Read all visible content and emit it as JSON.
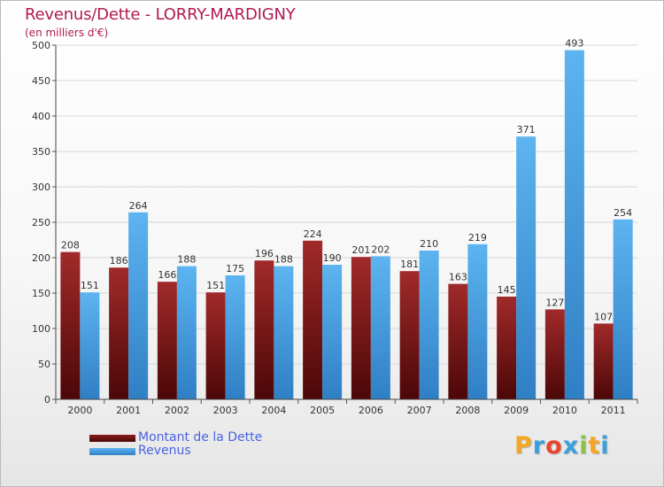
{
  "header": {
    "title": "Revenus/Dette - LORRY-MARDIGNY",
    "subtitle": "(en milliers d'€)"
  },
  "logo": {
    "text": "Proxiti"
  },
  "colors": {
    "title": "#b01a52",
    "dette": "#6e1414",
    "revenus": "#4aa3e6",
    "legend_text": "#4a63e0"
  },
  "chart_data": {
    "type": "bar",
    "title": "Revenus/Dette - LORRY-MARDIGNY",
    "subtitle": "(en milliers d'€)",
    "categories": [
      "2000",
      "2001",
      "2002",
      "2003",
      "2004",
      "2005",
      "2006",
      "2007",
      "2008",
      "2009",
      "2010",
      "2011"
    ],
    "series": [
      {
        "name": "Montant de la Dette",
        "values": [
          208,
          186,
          166,
          151,
          196,
          224,
          201,
          181,
          163,
          145,
          127,
          107
        ]
      },
      {
        "name": "Revenus",
        "values": [
          151,
          264,
          188,
          175,
          188,
          190,
          202,
          210,
          219,
          371,
          493,
          254
        ]
      }
    ],
    "ylim": [
      0,
      500
    ],
    "yticks": [
      0,
      50,
      100,
      150,
      200,
      250,
      300,
      350,
      400,
      450,
      500
    ],
    "grid": true,
    "legend": "bottom-left"
  }
}
